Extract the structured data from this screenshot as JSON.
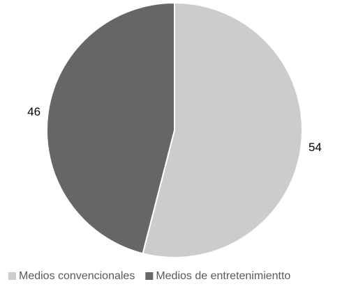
{
  "chart_data": {
    "type": "pie",
    "categories": [
      "Medios convencionales",
      "Medios de entretenimientto"
    ],
    "values": [
      54,
      46
    ],
    "colors": [
      "#cccccc",
      "#666666"
    ],
    "legend": "bottom"
  }
}
